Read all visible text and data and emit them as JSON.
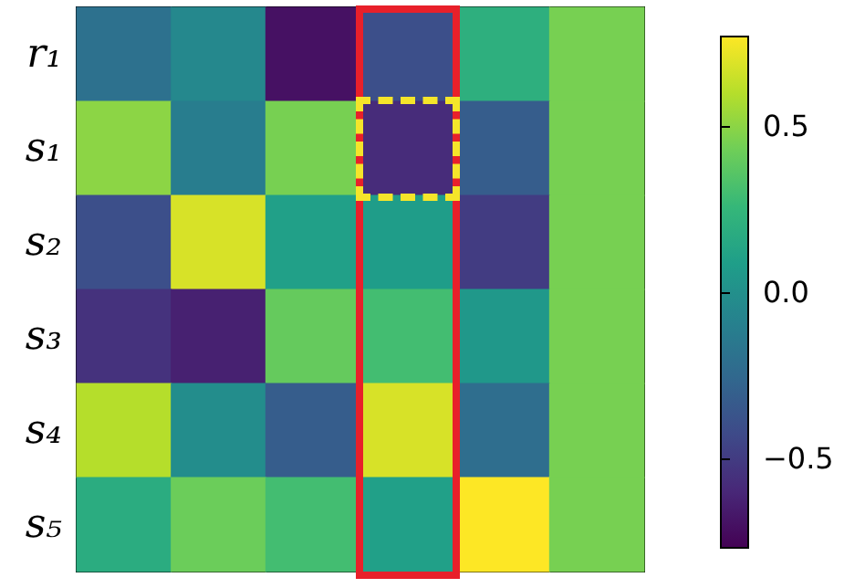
{
  "chart_data": {
    "type": "heatmap",
    "categories": [
      null,
      null,
      null,
      null,
      null,
      null
    ],
    "y_categories": [
      "r₁",
      "s₁",
      "s₂",
      "s₃",
      "s₄",
      "s₅"
    ],
    "cells": [
      [
        -0.2,
        -0.05,
        -0.7,
        -0.4,
        0.2,
        0.45
      ],
      [
        0.5,
        -0.12,
        0.45,
        -0.58,
        -0.32,
        0.45
      ],
      [
        -0.4,
        0.68,
        0.1,
        0.08,
        -0.5,
        0.45
      ],
      [
        -0.55,
        -0.63,
        0.4,
        0.3,
        0.05,
        0.45
      ],
      [
        0.6,
        -0.02,
        -0.32,
        0.68,
        -0.22,
        0.45
      ],
      [
        0.18,
        0.42,
        0.3,
        0.1,
        0.77,
        0.45
      ]
    ],
    "clim": [
      -0.77,
      0.77
    ],
    "cticks": [
      {
        "value": 0.5,
        "label": "0.5"
      },
      {
        "value": 0,
        "label": "0.0"
      },
      {
        "value": -0.5,
        "label": "−0.5"
      }
    ],
    "tick_labels": "y"
  }
}
